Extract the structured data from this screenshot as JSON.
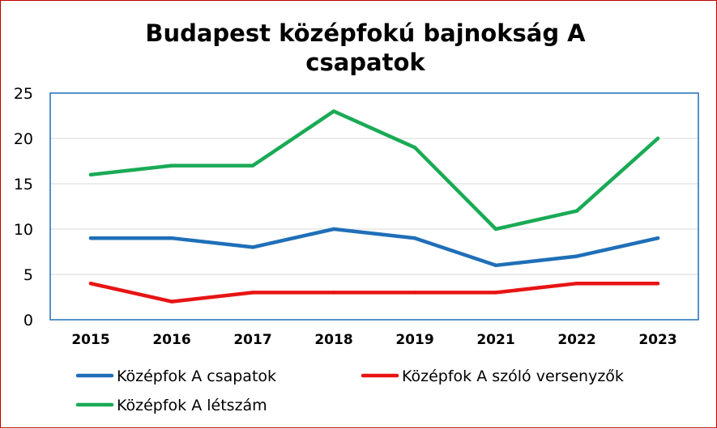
{
  "chart_data": {
    "type": "line",
    "title_line1": "Budapest középfokú bajnokság A",
    "title_line2": "csapatok",
    "categories": [
      "2015",
      "2016",
      "2017",
      "2018",
      "2019",
      "2021",
      "2022",
      "2023"
    ],
    "ylim": [
      0,
      25
    ],
    "yticks": [
      "0",
      "5",
      "10",
      "15",
      "20",
      "25"
    ],
    "grid": true,
    "legend_position": "bottom",
    "series": [
      {
        "name": "Középfok A csapatok",
        "color": "#1f6fb8",
        "values": [
          9,
          9,
          8,
          10,
          9,
          6,
          7,
          9
        ]
      },
      {
        "name": "Középfok A szóló versenyzők",
        "color": "#e81414",
        "values": [
          4,
          2,
          3,
          3,
          3,
          3,
          4,
          4
        ]
      },
      {
        "name": "Középfok A létszám",
        "color": "#1aaa55",
        "values": [
          16,
          17,
          17,
          23,
          19,
          10,
          12,
          20
        ]
      }
    ]
  }
}
